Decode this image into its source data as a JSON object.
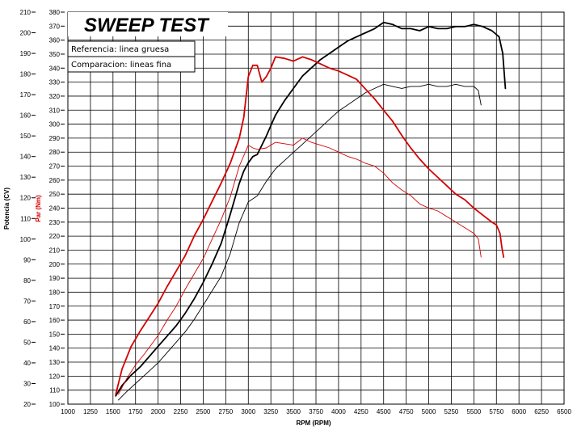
{
  "chart_data": {
    "type": "line",
    "title": "SWEEP TEST",
    "legend": [
      "Referencia: linea gruesa",
      "Comparacion: lineas fina"
    ],
    "xlabel": "RPM (RPM)",
    "ylabel_power": "Potencia (CV)",
    "ylabel_torque": "Par (Nm)",
    "xlim": [
      1000,
      6500
    ],
    "xticks": [
      1000,
      1250,
      1500,
      1750,
      2000,
      2250,
      2500,
      2750,
      3000,
      3250,
      3500,
      3750,
      4000,
      4250,
      4500,
      4750,
      5000,
      5250,
      5500,
      5750,
      6000,
      6250,
      6500
    ],
    "power_lim": [
      20,
      210
    ],
    "power_ticks": [
      20,
      30,
      40,
      50,
      60,
      70,
      80,
      90,
      100,
      110,
      120,
      130,
      140,
      150,
      160,
      170,
      180,
      190,
      200,
      210
    ],
    "torque_lim": [
      100,
      380
    ],
    "torque_ticks": [
      100,
      110,
      120,
      130,
      140,
      150,
      160,
      170,
      180,
      190,
      200,
      210,
      220,
      230,
      240,
      250,
      260,
      270,
      280,
      290,
      300,
      310,
      320,
      330,
      340,
      350,
      360,
      370,
      380
    ],
    "grid": true,
    "legend_position": "top-left",
    "series": [
      {
        "axis": "power",
        "color": "#000000",
        "width": "thick",
        "x": [
          1530,
          1600,
          1700,
          1800,
          1900,
          2000,
          2100,
          2200,
          2300,
          2400,
          2500,
          2600,
          2700,
          2800,
          2900,
          2950,
          3000,
          3050,
          3100,
          3200,
          3300,
          3400,
          3500,
          3600,
          3700,
          3800,
          3900,
          4000,
          4100,
          4200,
          4300,
          4400,
          4500,
          4600,
          4700,
          4800,
          4900,
          5000,
          5100,
          5200,
          5300,
          5400,
          5500,
          5600,
          5700,
          5780,
          5820,
          5850
        ],
        "y": [
          24,
          29,
          34,
          38,
          43,
          48,
          53,
          58,
          64,
          71,
          79,
          88,
          98,
          112,
          127,
          133,
          137,
          140,
          141,
          150,
          160,
          167,
          173,
          179,
          183,
          187,
          190,
          193,
          196,
          198,
          200,
          202,
          205,
          204,
          202,
          202,
          201,
          203,
          202,
          202,
          203,
          203,
          204,
          203,
          201,
          198,
          190,
          173
        ]
      },
      {
        "axis": "power",
        "color": "#000000",
        "width": "thin",
        "x": [
          1560,
          1650,
          1750,
          1850,
          2000,
          2100,
          2200,
          2300,
          2400,
          2500,
          2600,
          2700,
          2800,
          2900,
          3000,
          3100,
          3200,
          3300,
          3400,
          3500,
          3600,
          3700,
          3800,
          3900,
          4000,
          4100,
          4200,
          4300,
          4400,
          4500,
          4600,
          4700,
          4800,
          4900,
          5000,
          5100,
          5200,
          5300,
          5400,
          5500,
          5550,
          5580
        ],
        "y": [
          22,
          26,
          30,
          34,
          40,
          45,
          50,
          55,
          61,
          68,
          75,
          82,
          93,
          108,
          118,
          121,
          128,
          134,
          138,
          142,
          146,
          150,
          154,
          158,
          162,
          165,
          168,
          171,
          173,
          175,
          174,
          173,
          174,
          174,
          175,
          174,
          174,
          175,
          174,
          174,
          172,
          165
        ]
      },
      {
        "axis": "torque",
        "color": "#d40000",
        "width": "thick",
        "x": [
          1530,
          1600,
          1700,
          1800,
          1900,
          2000,
          2100,
          2200,
          2300,
          2400,
          2500,
          2600,
          2700,
          2800,
          2900,
          2950,
          3000,
          3050,
          3100,
          3150,
          3200,
          3250,
          3300,
          3400,
          3500,
          3600,
          3700,
          3800,
          3900,
          4000,
          4100,
          4200,
          4300,
          4400,
          4500,
          4600,
          4700,
          4800,
          4900,
          5000,
          5100,
          5200,
          5300,
          5400,
          5500,
          5600,
          5700,
          5750,
          5790,
          5810,
          5830
        ],
        "y": [
          107,
          125,
          141,
          152,
          162,
          172,
          184,
          195,
          206,
          220,
          232,
          245,
          258,
          272,
          290,
          305,
          334,
          342,
          342,
          330,
          334,
          340,
          348,
          347,
          345,
          348,
          346,
          343,
          340,
          338,
          335,
          332,
          325,
          318,
          310,
          302,
          292,
          283,
          275,
          268,
          262,
          256,
          250,
          246,
          240,
          235,
          230,
          228,
          222,
          212,
          205
        ]
      },
      {
        "axis": "torque",
        "color": "#d40000",
        "width": "thin",
        "x": [
          1560,
          1650,
          1750,
          1850,
          2000,
          2100,
          2200,
          2300,
          2400,
          2500,
          2600,
          2700,
          2800,
          2900,
          3000,
          3050,
          3100,
          3200,
          3300,
          3400,
          3500,
          3600,
          3700,
          3800,
          3900,
          4000,
          4100,
          4200,
          4300,
          4400,
          4500,
          4600,
          4700,
          4800,
          4900,
          5000,
          5100,
          5200,
          5300,
          5400,
          5500,
          5550,
          5580
        ],
        "y": [
          107,
          118,
          128,
          136,
          149,
          160,
          170,
          182,
          193,
          204,
          218,
          232,
          248,
          270,
          285,
          283,
          282,
          283,
          287,
          286,
          285,
          290,
          287,
          285,
          283,
          280,
          277,
          275,
          272,
          270,
          265,
          258,
          253,
          249,
          243,
          240,
          238,
          234,
          230,
          226,
          222,
          218,
          205
        ]
      }
    ]
  }
}
